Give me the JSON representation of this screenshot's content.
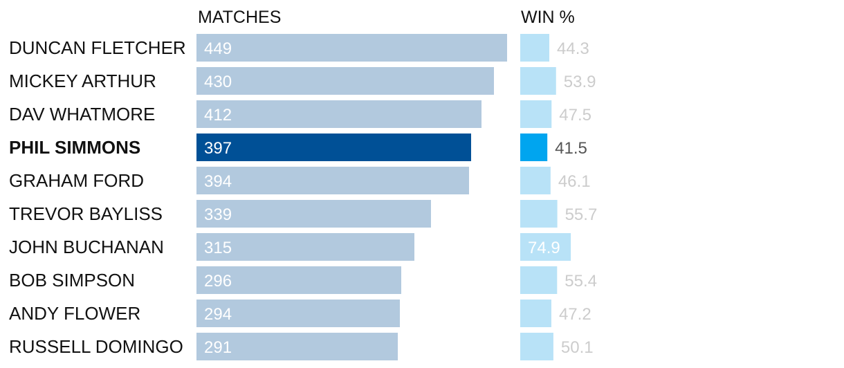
{
  "colors": {
    "matches_bar": "#b2c9de",
    "matches_bar_highlight": "#005096",
    "matches_label": "#ffffff",
    "win_bar": "#b8e2f7",
    "win_bar_highlight": "#00a5ef",
    "win_label_outside": "#cccccc",
    "win_label_highlight": "#555555",
    "win_label_inside": "#ffffff",
    "text": "#111111"
  },
  "chart_data": {
    "type": "bar",
    "orientation": "horizontal",
    "headers": {
      "matches": "MATCHES",
      "win_pct": "WIN %"
    },
    "highlight": "PHIL SIMMONS",
    "categories": [
      "DUNCAN FLETCHER",
      "MICKEY ARTHUR",
      "DAV WHATMORE",
      "PHIL SIMMONS",
      "GRAHAM FORD",
      "TREVOR BAYLISS",
      "JOHN BUCHANAN",
      "BOB SIMPSON",
      "ANDY FLOWER",
      "RUSSELL DOMINGO"
    ],
    "series": [
      {
        "name": "MATCHES",
        "values": [
          449,
          430,
          412,
          397,
          394,
          339,
          315,
          296,
          294,
          291
        ],
        "labels": [
          "449",
          "430",
          "412",
          "397",
          "394",
          "339",
          "315",
          "296",
          "294",
          "291"
        ]
      },
      {
        "name": "WIN %",
        "values": [
          44.3,
          53.9,
          47.5,
          41.5,
          46.1,
          55.7,
          74.9,
          55.4,
          47.2,
          50.1
        ],
        "labels": [
          "44.3",
          "53.9",
          "47.5",
          "41.5",
          "46.1",
          "55.7",
          "74.9",
          "55.4",
          "47.2",
          "50.1"
        ]
      }
    ],
    "grid": false,
    "legend": "none"
  }
}
